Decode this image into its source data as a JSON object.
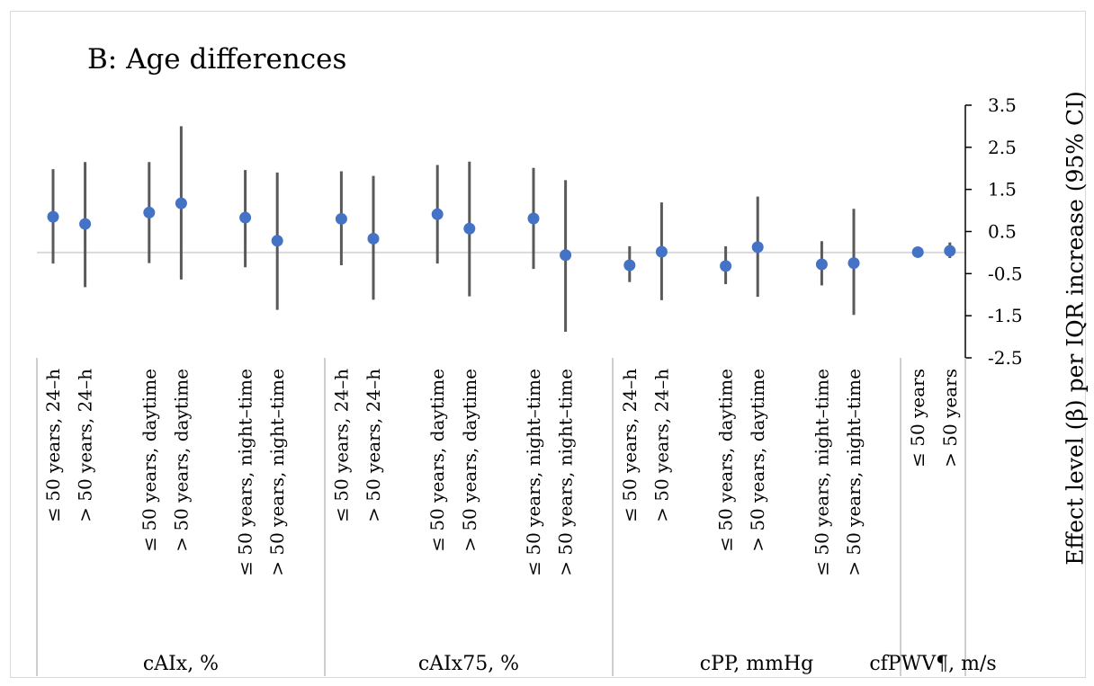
{
  "chart_data": {
    "type": "scatter",
    "subtype": "forest-plot-with-error-bars",
    "title": "B: Age differences",
    "ylabel": "Effect level (β) per IQR increase (95% CI)",
    "xlabel": "",
    "ylim": [
      -2.5,
      3.5
    ],
    "yticks": [
      "3.5",
      "2.5",
      "1.5",
      "0.5",
      "-0.5",
      "-1.5",
      "-2.5"
    ],
    "grid": false,
    "legend": "none",
    "marker_color": "#4472c4",
    "errorbar_color": "#595959",
    "zero_line_color": "#d9d9d9",
    "groups": [
      {
        "label": "cAIx, %",
        "categories": [
          "≤ 50 years, 24–h",
          "> 50 years, 24–h",
          "≤ 50 years, daytime",
          "> 50 years, daytime",
          "≤ 50 years, night–time",
          "> 50 years, night–time"
        ],
        "estimates": [
          0.85,
          0.68,
          0.95,
          1.17,
          0.83,
          0.28
        ],
        "lower": [
          -0.26,
          -0.82,
          -0.25,
          -0.64,
          -0.35,
          -1.36
        ],
        "upper": [
          1.98,
          2.15,
          2.15,
          3.0,
          1.96,
          1.9
        ]
      },
      {
        "label": "cAIx75, %",
        "categories": [
          "≤ 50 years, 24–h",
          "> 50 years, 24–h",
          "≤ 50 years, daytime",
          "> 50 years, daytime",
          "≤ 50 years, night–time",
          "> 50 years, night–time"
        ],
        "estimates": [
          0.8,
          0.33,
          0.91,
          0.57,
          0.81,
          -0.06
        ],
        "lower": [
          -0.3,
          -1.12,
          -0.26,
          -1.04,
          -0.39,
          -1.88
        ],
        "upper": [
          1.93,
          1.82,
          2.08,
          2.16,
          2.01,
          1.72
        ]
      },
      {
        "label": "cPP, mmHg",
        "categories": [
          "≤ 50 years, 24–h",
          "> 50 years, 24–h",
          "≤ 50 years, daytime",
          "> 50 years, daytime",
          "≤ 50 years, night–time",
          "> 50 years, night–time"
        ],
        "estimates": [
          -0.3,
          0.02,
          -0.32,
          0.13,
          -0.28,
          -0.25
        ],
        "lower": [
          -0.7,
          -1.13,
          -0.75,
          -1.05,
          -0.78,
          -1.48
        ],
        "upper": [
          0.15,
          1.19,
          0.15,
          1.33,
          0.27,
          1.04
        ]
      },
      {
        "label": "cfPWV¶, m/s",
        "categories": [
          "≤ 50 years",
          "> 50 years"
        ],
        "estimates": [
          0.01,
          0.04
        ],
        "lower": [
          -0.06,
          -0.13
        ],
        "upper": [
          0.08,
          0.24
        ]
      }
    ]
  }
}
